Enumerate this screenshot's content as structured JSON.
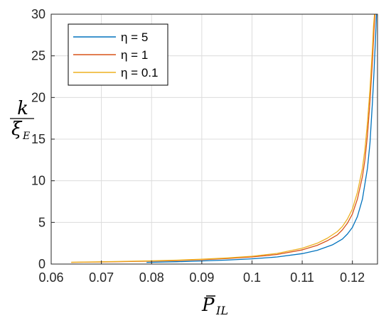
{
  "chart_data": {
    "type": "line",
    "xlim": [
      0.06,
      0.125
    ],
    "ylim": [
      0,
      30
    ],
    "xticks": [
      0.06,
      0.07,
      0.08,
      0.09,
      0.1,
      0.11,
      0.12
    ],
    "xtick_labels": [
      "0.06",
      "0.07",
      "0.08",
      "0.09",
      "0.1",
      "0.11",
      "0.12"
    ],
    "yticks": [
      0,
      5,
      10,
      15,
      20,
      25,
      30
    ],
    "ytick_labels": [
      "0",
      "5",
      "10",
      "15",
      "20",
      "25",
      "30"
    ],
    "grid": true,
    "legend_position": "top-left",
    "xlabel": "P̄IL",
    "xlabel_base": "P",
    "xlabel_sub": "IL",
    "ylabel_num": "k",
    "ylabel_den": "ξ",
    "ylabel_den_sub": "E",
    "series": [
      {
        "name": "η = 5",
        "color": "#0072BD",
        "x": [
          0.079,
          0.085,
          0.09,
          0.095,
          0.1,
          0.105,
          0.11,
          0.113,
          0.116,
          0.118,
          0.119,
          0.12,
          0.121,
          0.122,
          0.123,
          0.1235,
          0.124,
          0.1243,
          0.1246,
          0.1248
        ],
        "y": [
          0.2,
          0.28,
          0.37,
          0.48,
          0.63,
          0.85,
          1.25,
          1.65,
          2.3,
          3.0,
          3.6,
          4.4,
          5.7,
          7.8,
          11.5,
          14.5,
          19.5,
          23.0,
          27.0,
          30.0
        ]
      },
      {
        "name": "η = 1",
        "color": "#D95319",
        "x": [
          0.064,
          0.07,
          0.075,
          0.08,
          0.085,
          0.09,
          0.095,
          0.1,
          0.105,
          0.11,
          0.113,
          0.115,
          0.117,
          0.118,
          0.119,
          0.12,
          0.121,
          0.122,
          0.1225,
          0.123,
          0.1235,
          0.124,
          0.1243,
          0.1245
        ],
        "y": [
          0.2,
          0.25,
          0.3,
          0.35,
          0.42,
          0.52,
          0.66,
          0.85,
          1.15,
          1.7,
          2.25,
          2.8,
          3.5,
          4.1,
          4.9,
          6.0,
          7.8,
          10.5,
          12.5,
          15.5,
          19.5,
          24.5,
          28.0,
          30.0
        ]
      },
      {
        "name": "η = 0.1",
        "color": "#EDB120",
        "x": [
          0.064,
          0.07,
          0.075,
          0.08,
          0.085,
          0.09,
          0.095,
          0.1,
          0.105,
          0.11,
          0.113,
          0.115,
          0.117,
          0.118,
          0.119,
          0.12,
          0.121,
          0.122,
          0.1225,
          0.123,
          0.1235,
          0.124,
          0.1242,
          0.1244
        ],
        "y": [
          0.22,
          0.27,
          0.33,
          0.39,
          0.47,
          0.58,
          0.73,
          0.94,
          1.28,
          1.9,
          2.5,
          3.1,
          3.9,
          4.5,
          5.4,
          6.6,
          8.6,
          11.5,
          13.8,
          17.0,
          21.0,
          26.0,
          28.5,
          30.0
        ]
      }
    ]
  }
}
